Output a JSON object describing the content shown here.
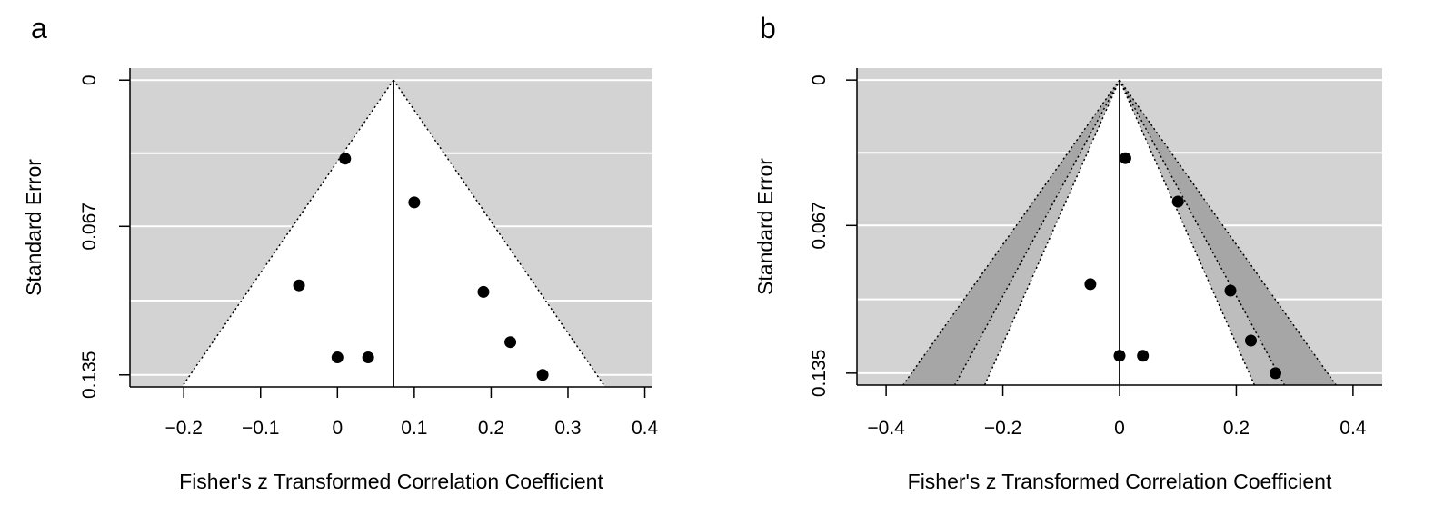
{
  "chart_data": [
    {
      "panel": "a",
      "type": "scatter",
      "variant": "funnel",
      "xlabel": "Fisher's z Transformed Correlation Coefficient",
      "ylabel": "Standard Error",
      "xlim": [
        -0.27,
        0.41
      ],
      "ylim": [
        0.1405,
        -0.0055
      ],
      "xticks": [
        -0.2,
        -0.1,
        0,
        0.1,
        0.2,
        0.3,
        0.4
      ],
      "xtick_labels": [
        "−0.2",
        "−0.1",
        "0",
        "0.1",
        "0.2",
        "0.3",
        "0.4"
      ],
      "yticks": [
        0,
        0.067,
        0.135
      ],
      "ytick_labels": [
        "0",
        "0.067",
        "0.135"
      ],
      "grid": true,
      "y_reversed": true,
      "center_line": 0.073,
      "funnel_multipliers": [
        1.96
      ],
      "funnel_region_colors": [
        "#ffffff"
      ],
      "background_color": "#d3d3d3",
      "points": [
        {
          "x": 0.01,
          "y": 0.036
        },
        {
          "x": 0.1,
          "y": 0.056
        },
        {
          "x": -0.05,
          "y": 0.094
        },
        {
          "x": 0.19,
          "y": 0.097
        },
        {
          "x": 0.225,
          "y": 0.12
        },
        {
          "x": 0.0,
          "y": 0.127
        },
        {
          "x": 0.04,
          "y": 0.127
        },
        {
          "x": 0.267,
          "y": 0.135
        }
      ]
    },
    {
      "panel": "b",
      "type": "scatter",
      "variant": "contour-enhanced funnel",
      "xlabel": "Fisher's z Transformed Correlation Coefficient",
      "ylabel": "Standard Error",
      "xlim": [
        -0.45,
        0.45
      ],
      "ylim": [
        0.1405,
        -0.0055
      ],
      "xticks": [
        -0.4,
        -0.2,
        0,
        0.2,
        0.4
      ],
      "xtick_labels": [
        "−0.4",
        "−0.2",
        "0",
        "0.2",
        "0.4"
      ],
      "yticks": [
        0,
        0.067,
        0.135
      ],
      "ytick_labels": [
        "0",
        "0.067",
        "0.135"
      ],
      "grid": true,
      "y_reversed": true,
      "center_line": 0,
      "funnel_multipliers": [
        2.64,
        2.01,
        1.645
      ],
      "funnel_region_colors": [
        "#a6a6a6",
        "#bdbdbd",
        "#ffffff"
      ],
      "background_color": "#d3d3d3",
      "points": [
        {
          "x": 0.01,
          "y": 0.036
        },
        {
          "x": 0.1,
          "y": 0.056
        },
        {
          "x": -0.05,
          "y": 0.094
        },
        {
          "x": 0.19,
          "y": 0.097
        },
        {
          "x": 0.225,
          "y": 0.12
        },
        {
          "x": 0.0,
          "y": 0.127
        },
        {
          "x": 0.04,
          "y": 0.127
        },
        {
          "x": 0.267,
          "y": 0.135
        }
      ]
    }
  ]
}
